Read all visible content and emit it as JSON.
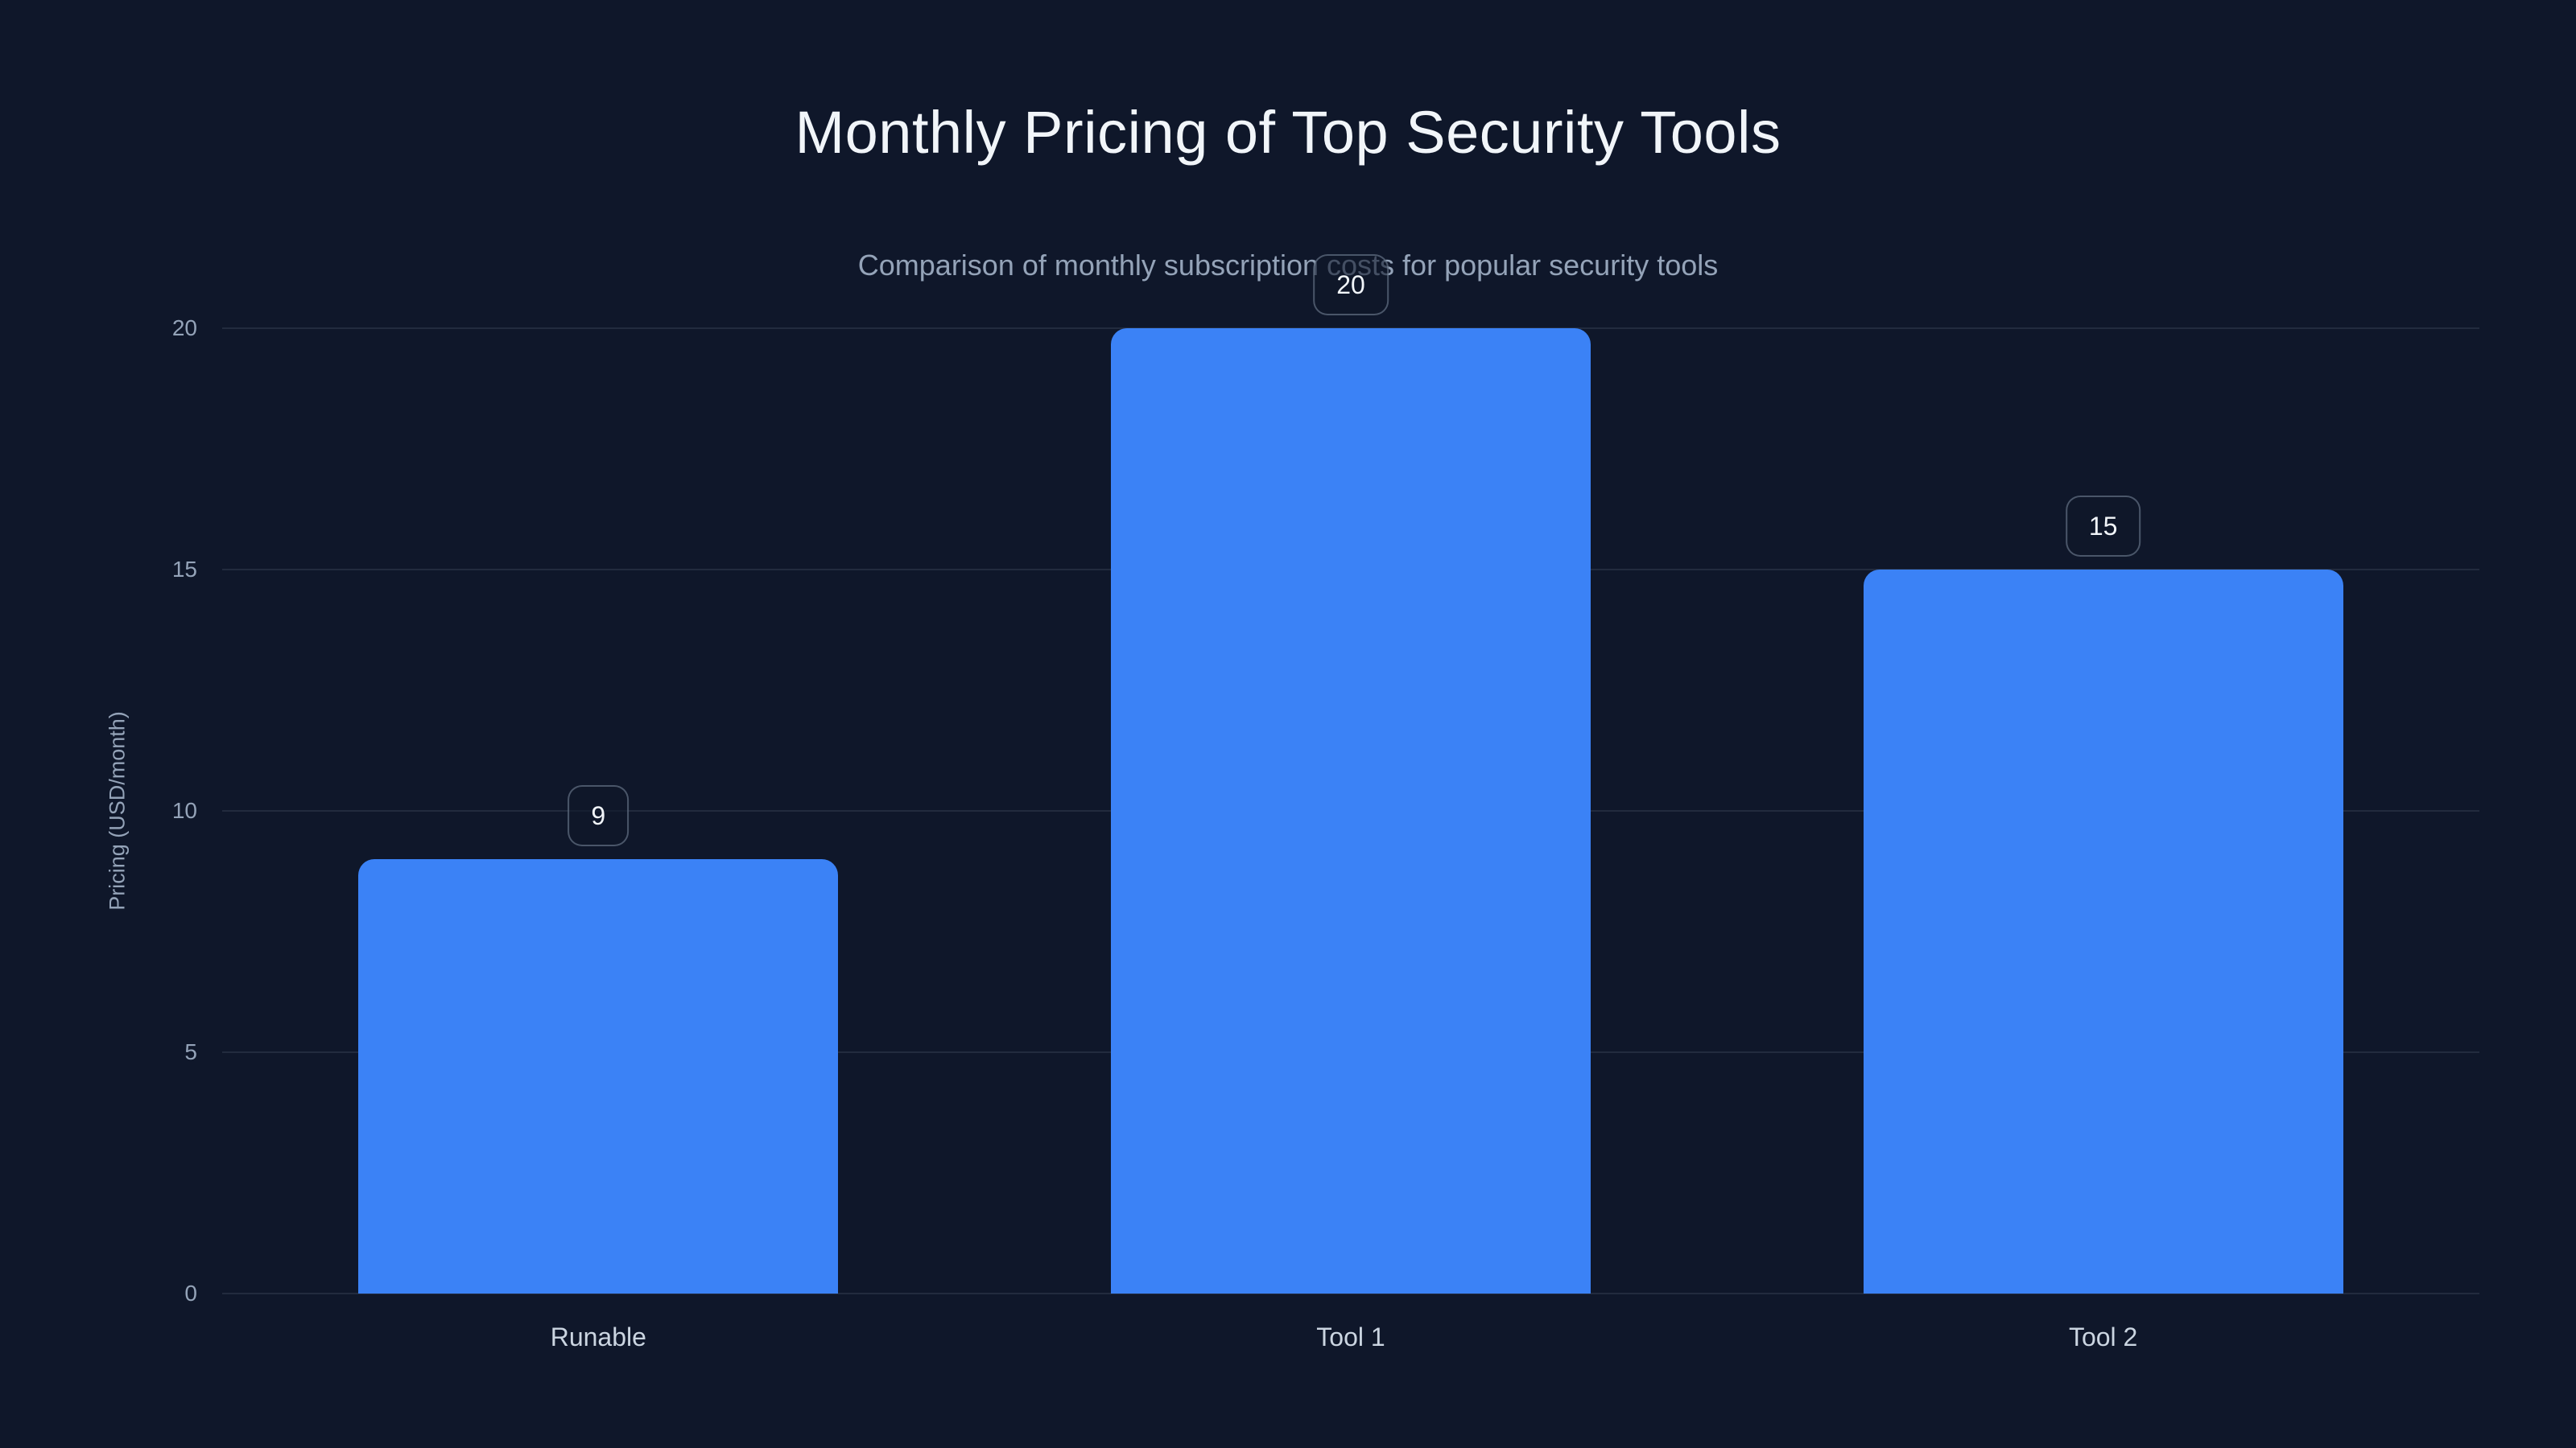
{
  "page": {
    "background": "#0f172a"
  },
  "chart_data": {
    "type": "bar",
    "title": "Monthly Pricing of Top Security Tools",
    "subtitle": "Comparison of monthly subscription costs for popular security tools",
    "categories": [
      "Runable",
      "Tool 1",
      "Tool 2"
    ],
    "values": [
      9,
      20,
      15
    ],
    "bar_value_labels": [
      "9",
      "20",
      "15"
    ],
    "xlabel": "",
    "ylabel": "Pricing (USD/month)",
    "ylim": [
      0,
      20
    ],
    "yticks": [
      0,
      5,
      10,
      15,
      20
    ],
    "grid": true,
    "legend": "none",
    "layout_hints": {
      "bar_value_badges": "rounded bordered chips floating above each bar",
      "grid_lines": "horizontal only",
      "theme": "dark"
    },
    "colors": {
      "background": "#0f172a",
      "bar": "#3b82f6",
      "title_text": "#f1f5f9",
      "subtitle_text": "#94a3b8",
      "axis_text": "#94a3b8",
      "category_text": "#cbd5e1",
      "gridline": "rgba(148,163,184,0.15)",
      "badge_background": "rgba(15,23,42,0.6)",
      "badge_border": "rgba(148,163,184,0.45)",
      "badge_text": "#f1f5f9"
    }
  }
}
